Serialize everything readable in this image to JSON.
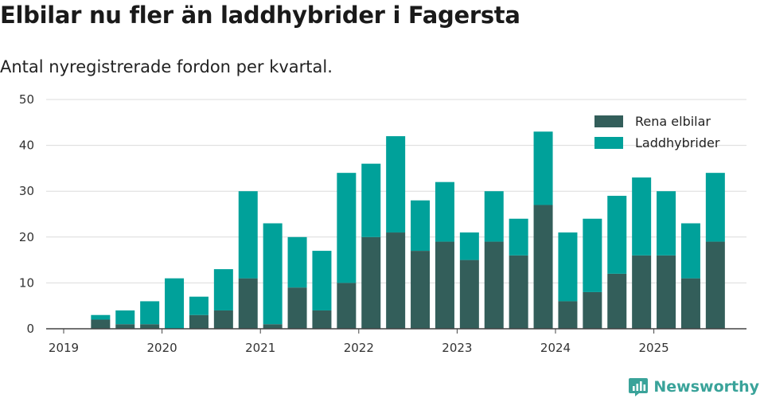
{
  "header": {
    "title": "Elbilar nu fler än laddhybrider i Fagersta",
    "subtitle": "Antal nyregistrerade fordon per kvartal."
  },
  "brand": {
    "name": "Newsworthy",
    "icon": "newsworthy-logo-icon",
    "color": "#3aa39a"
  },
  "chart_data": {
    "type": "bar",
    "stacked": true,
    "title": "Elbilar nu fler än laddhybrider i Fagersta",
    "subtitle": "Antal nyregistrerade fordon per kvartal.",
    "xlabel": "",
    "ylabel": "",
    "ylim": [
      0,
      50
    ],
    "yticks": [
      0,
      10,
      20,
      30,
      40,
      50
    ],
    "grid": true,
    "legend_position": "top-right",
    "x_tick_labels": [
      "2019",
      "2020",
      "2021",
      "2022",
      "2023",
      "2024",
      "2025"
    ],
    "categories": [
      "2019 Q2",
      "2019 Q3",
      "2019 Q4",
      "2020 Q1",
      "2020 Q2",
      "2020 Q3",
      "2020 Q4",
      "2021 Q1",
      "2021 Q2",
      "2021 Q3",
      "2021 Q4",
      "2022 Q1",
      "2022 Q2",
      "2022 Q3",
      "2022 Q4",
      "2023 Q1",
      "2023 Q2",
      "2023 Q3",
      "2023 Q4",
      "2024 Q1",
      "2024 Q2",
      "2024 Q3",
      "2024 Q4",
      "2025 Q1",
      "2025 Q2",
      "2025 Q3"
    ],
    "series": [
      {
        "name": "Rena elbilar",
        "color": "#335e5a",
        "values": [
          2,
          1,
          1,
          0,
          3,
          4,
          11,
          1,
          9,
          4,
          10,
          20,
          21,
          17,
          19,
          15,
          19,
          16,
          27,
          6,
          8,
          12,
          16,
          16,
          11,
          19
        ]
      },
      {
        "name": "Laddhybrider",
        "color": "#00a19a",
        "values": [
          1,
          3,
          5,
          11,
          4,
          9,
          19,
          22,
          11,
          13,
          24,
          16,
          21,
          11,
          13,
          6,
          11,
          8,
          16,
          15,
          16,
          17,
          17,
          14,
          12,
          15
        ]
      }
    ]
  }
}
